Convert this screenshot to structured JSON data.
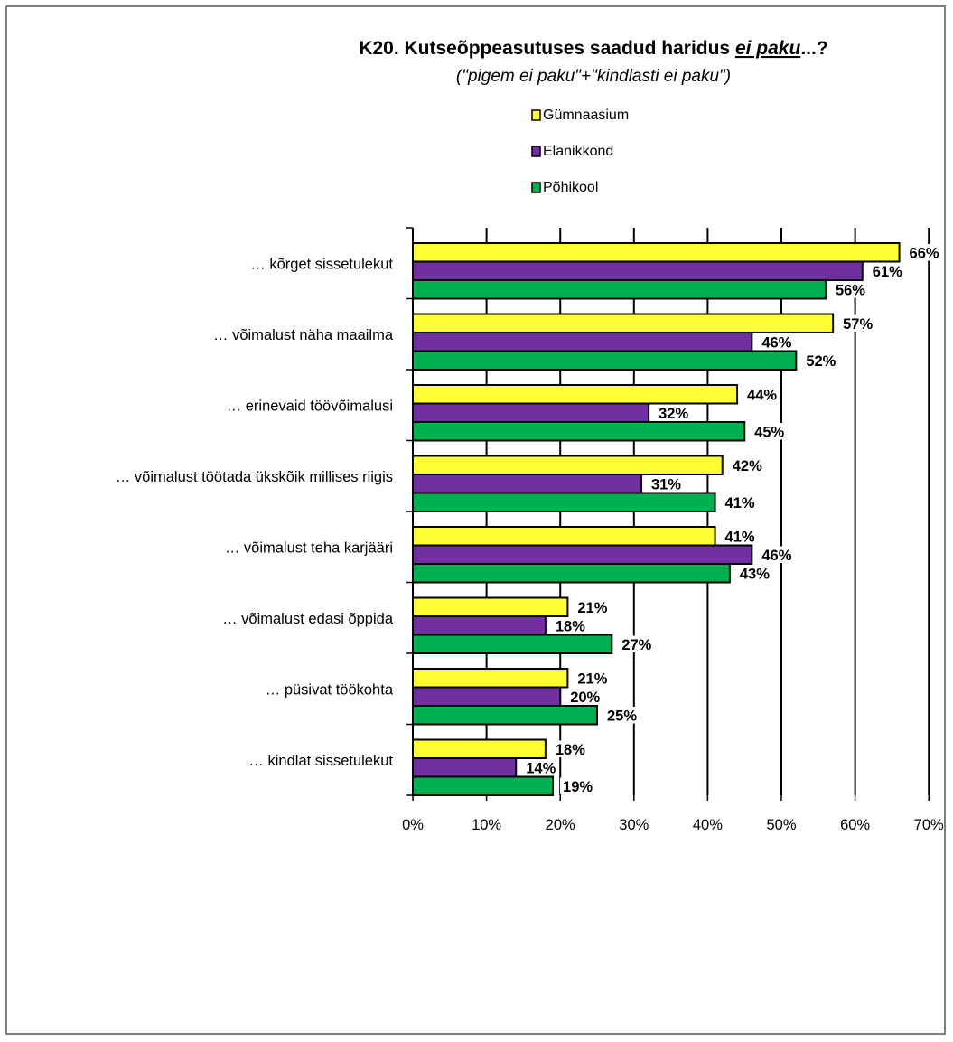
{
  "chart_data": {
    "type": "bar",
    "orientation": "horizontal",
    "title_prefix": "K20. Kutseõppeasutuses saadud haridus ",
    "title_emphasis": "ei paku",
    "title_suffix": "...?",
    "subtitle": "(\"pigem ei paku\"+\"kindlasti ei paku\")",
    "categories": [
      "… kõrget sissetulekut",
      "… võimalust näha maailma",
      "… erinevaid töövõimalusi",
      "… võimalust töötada ükskõik millises riigis",
      "… võimalust teha karjääri",
      "… võimalust edasi õppida",
      "… püsivat töökohta",
      "… kindlat sissetulekut"
    ],
    "series": [
      {
        "name": "Gümnaasium",
        "color": "#ffff33",
        "values": [
          66,
          57,
          44,
          42,
          41,
          21,
          21,
          18
        ]
      },
      {
        "name": "Elanikkond",
        "color": "#7030a0",
        "values": [
          61,
          46,
          32,
          31,
          46,
          18,
          20,
          14
        ]
      },
      {
        "name": "Põhikool",
        "color": "#00b050",
        "values": [
          56,
          52,
          45,
          41,
          43,
          27,
          25,
          19
        ]
      }
    ],
    "value_format": "%",
    "xlim": [
      0,
      70
    ],
    "xticks": [
      0,
      10,
      20,
      30,
      40,
      50,
      60,
      70
    ],
    "xtick_labels": [
      "0%",
      "10%",
      "20%",
      "30%",
      "40%",
      "50%",
      "60%",
      "70%"
    ],
    "grid": true,
    "legend_position": "top-center"
  }
}
